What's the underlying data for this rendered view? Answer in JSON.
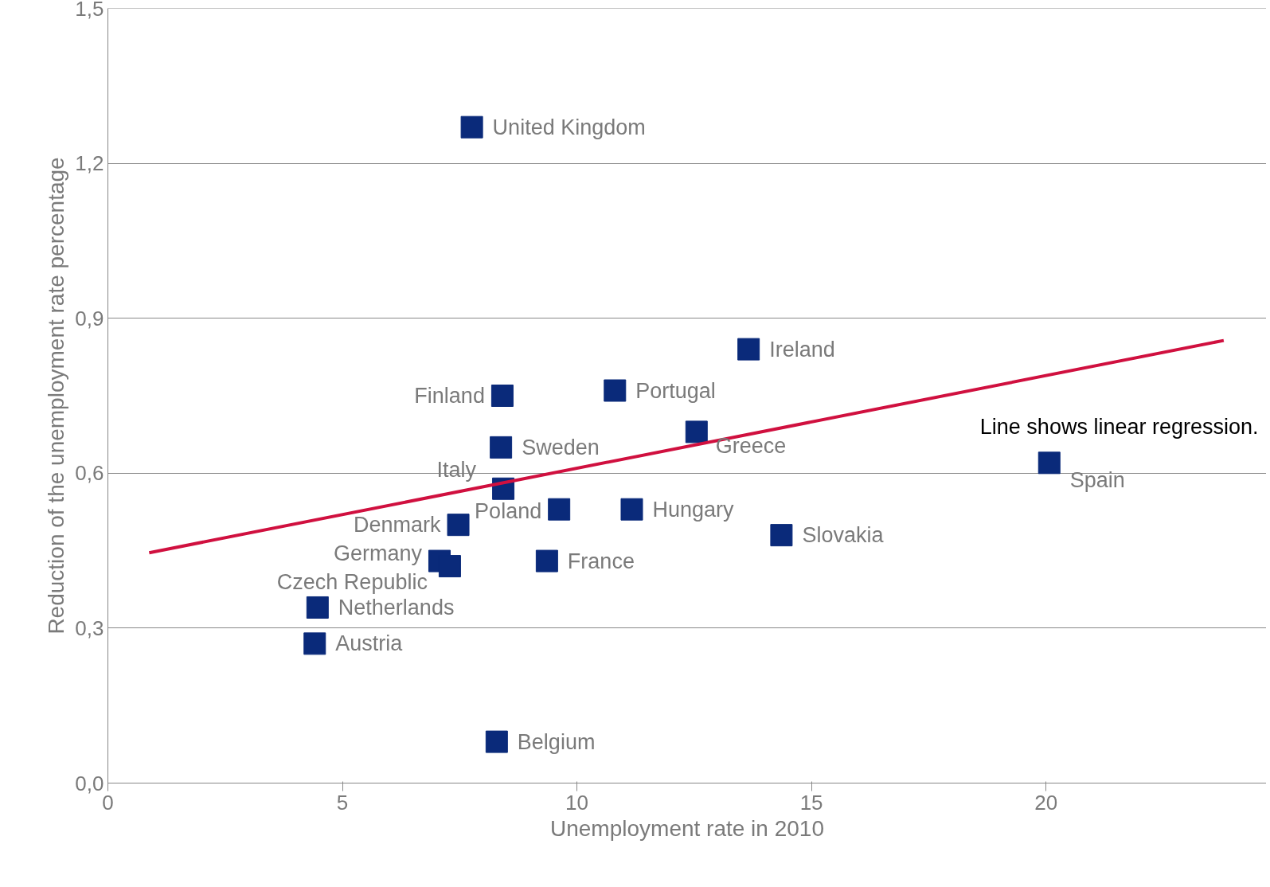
{
  "chart_data": {
    "type": "scatter",
    "xlabel": "Unemployment rate in 2010",
    "ylabel": "Reduction of the unemployment rate percentage",
    "xlim": [
      0,
      24.7
    ],
    "ylim": [
      0,
      1.5
    ],
    "xticks": [
      0,
      5,
      10,
      15,
      20
    ],
    "yticks": [
      {
        "value": 0,
        "label": "0,0"
      },
      {
        "value": 0.3,
        "label": "0,3"
      },
      {
        "value": 0.6,
        "label": "0,6"
      },
      {
        "value": 0.9,
        "label": "0,9"
      },
      {
        "value": 1.2,
        "label": "1,2"
      },
      {
        "value": 1.5,
        "label": "1,5"
      }
    ],
    "grid": "y",
    "marker": "square",
    "series": [
      {
        "color": "#0a2a7a",
        "x": [
          7.76,
          13.66,
          10.81,
          8.41,
          12.55,
          8.38,
          20.07,
          8.43,
          9.62,
          11.17,
          7.47,
          14.36,
          7.07,
          7.29,
          9.36,
          4.47,
          4.41,
          8.29
        ],
        "values": [
          1.27,
          0.84,
          0.76,
          0.75,
          0.68,
          0.65,
          0.62,
          0.57,
          0.53,
          0.53,
          0.5,
          0.48,
          0.43,
          0.42,
          0.43,
          0.34,
          0.27,
          0.08
        ]
      },
      {
        "type": "line",
        "marker": "none",
        "color": "#d0103f",
        "x": [
          0.88,
          23.79
        ],
        "values": [
          0.446,
          0.857
        ]
      }
    ],
    "annotations": [
      {
        "text": "United Kingdom",
        "x": 7.76,
        "y": 1.27
      },
      {
        "text": "Ireland",
        "x": 13.66,
        "y": 0.84
      },
      {
        "text": "Portugal",
        "x": 10.81,
        "y": 0.76
      },
      {
        "text": "Finland",
        "x": 8.41,
        "y": 0.75
      },
      {
        "text": "Greece",
        "x": 12.55,
        "y": 0.68
      },
      {
        "text": "Sweden",
        "x": 8.38,
        "y": 0.65
      },
      {
        "text": "Spain",
        "x": 20.07,
        "y": 0.62
      },
      {
        "text": "Italy",
        "x": 8.43,
        "y": 0.57
      },
      {
        "text": "Poland",
        "x": 9.62,
        "y": 0.53
      },
      {
        "text": "Hungary",
        "x": 11.17,
        "y": 0.53
      },
      {
        "text": "Denmark",
        "x": 7.47,
        "y": 0.5
      },
      {
        "text": "Slovakia",
        "x": 14.36,
        "y": 0.48
      },
      {
        "text": "Germany",
        "x": 7.07,
        "y": 0.43
      },
      {
        "text": "Czech Republic",
        "x": 7.29,
        "y": 0.42
      },
      {
        "text": "France",
        "x": 9.36,
        "y": 0.43
      },
      {
        "text": "Netherlands",
        "x": 4.47,
        "y": 0.34
      },
      {
        "text": "Austria",
        "x": 4.41,
        "y": 0.27
      },
      {
        "text": "Belgium",
        "x": 8.29,
        "y": 0.08
      },
      "Line shows linear regression."
    ]
  }
}
